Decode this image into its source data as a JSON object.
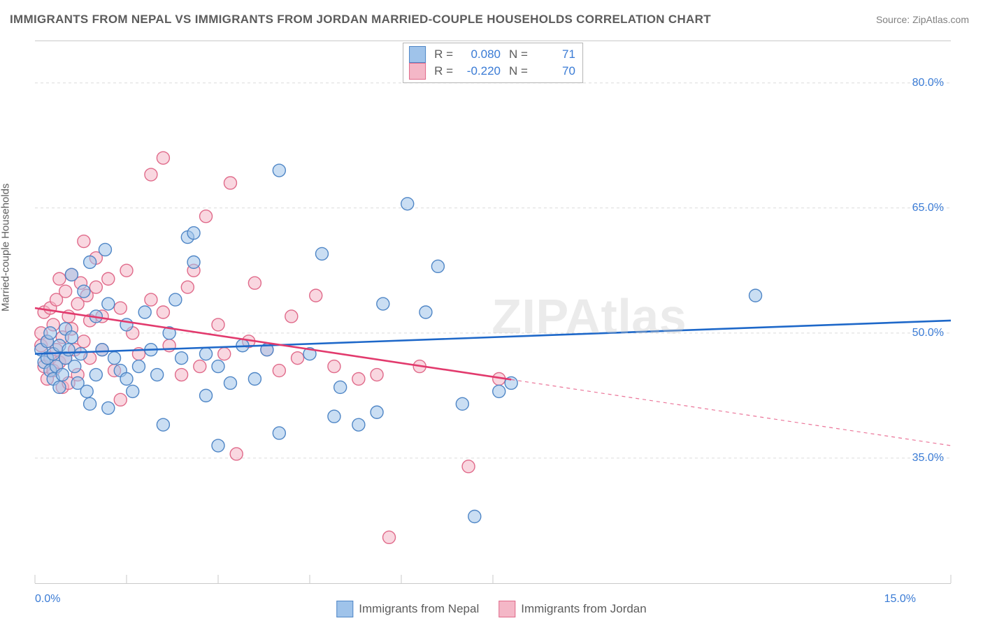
{
  "title": "IMMIGRANTS FROM NEPAL VS IMMIGRANTS FROM JORDAN MARRIED-COUPLE HOUSEHOLDS CORRELATION CHART",
  "source_label": "Source: ZipAtlas.com",
  "ylabel": "Married-couple Households",
  "watermark": "ZIPAtlas",
  "chart": {
    "type": "scatter",
    "xlim": [
      0.0,
      15.0
    ],
    "ylim": [
      20.0,
      85.0
    ],
    "xtick_labels": {
      "min": "0.0%",
      "max": "15.0%"
    },
    "ytick_values": [
      35.0,
      50.0,
      65.0,
      80.0
    ],
    "ytick_labels": [
      "35.0%",
      "50.0%",
      "65.0%",
      "80.0%"
    ],
    "x_minor_ticks": [
      0,
      1.5,
      3.0,
      4.5,
      6.0,
      7.5,
      15.0
    ],
    "background_color": "#ffffff",
    "grid_color": "#dcdcdc",
    "grid_dash": "4,4",
    "marker_radius": 9,
    "marker_stroke_width": 1.4,
    "trend_line_width": 2.6,
    "series": [
      {
        "key": "nepal",
        "label": "Immigrants from Nepal",
        "fill": "#9fc3ea",
        "stroke": "#4f86c6",
        "fill_opacity": 0.55,
        "trend": {
          "color": "#1e68c9",
          "x0": 0.0,
          "y0": 47.5,
          "x1": 15.0,
          "y1": 51.5,
          "solid_until_x": 15.0
        },
        "stats": {
          "R": "0.080",
          "N": "71"
        },
        "points": [
          [
            0.1,
            48.0
          ],
          [
            0.15,
            46.5
          ],
          [
            0.2,
            49.0
          ],
          [
            0.2,
            47.0
          ],
          [
            0.25,
            45.5
          ],
          [
            0.25,
            50.0
          ],
          [
            0.3,
            47.5
          ],
          [
            0.3,
            44.5
          ],
          [
            0.35,
            46.0
          ],
          [
            0.4,
            43.5
          ],
          [
            0.4,
            48.5
          ],
          [
            0.45,
            45.0
          ],
          [
            0.5,
            50.5
          ],
          [
            0.5,
            47.0
          ],
          [
            0.55,
            48.0
          ],
          [
            0.6,
            49.5
          ],
          [
            0.6,
            57.0
          ],
          [
            0.65,
            46.0
          ],
          [
            0.7,
            44.0
          ],
          [
            0.75,
            47.5
          ],
          [
            0.8,
            55.0
          ],
          [
            0.85,
            43.0
          ],
          [
            0.9,
            58.5
          ],
          [
            0.9,
            41.5
          ],
          [
            1.0,
            45.0
          ],
          [
            1.0,
            52.0
          ],
          [
            1.1,
            48.0
          ],
          [
            1.15,
            60.0
          ],
          [
            1.2,
            53.5
          ],
          [
            1.2,
            41.0
          ],
          [
            1.3,
            47.0
          ],
          [
            1.4,
            45.5
          ],
          [
            1.5,
            51.0
          ],
          [
            1.5,
            44.5
          ],
          [
            1.6,
            43.0
          ],
          [
            1.7,
            46.0
          ],
          [
            1.8,
            52.5
          ],
          [
            1.9,
            48.0
          ],
          [
            2.0,
            45.0
          ],
          [
            2.1,
            39.0
          ],
          [
            2.2,
            50.0
          ],
          [
            2.3,
            54.0
          ],
          [
            2.4,
            47.0
          ],
          [
            2.5,
            61.5
          ],
          [
            2.6,
            62.0
          ],
          [
            2.6,
            58.5
          ],
          [
            2.8,
            47.5
          ],
          [
            2.8,
            42.5
          ],
          [
            3.0,
            46.0
          ],
          [
            3.0,
            36.5
          ],
          [
            3.2,
            44.0
          ],
          [
            3.4,
            48.5
          ],
          [
            3.6,
            44.5
          ],
          [
            3.8,
            48.0
          ],
          [
            4.0,
            69.5
          ],
          [
            4.0,
            38.0
          ],
          [
            4.5,
            47.5
          ],
          [
            4.7,
            59.5
          ],
          [
            4.9,
            40.0
          ],
          [
            5.0,
            43.5
          ],
          [
            5.3,
            39.0
          ],
          [
            5.6,
            40.5
          ],
          [
            5.7,
            53.5
          ],
          [
            6.1,
            65.5
          ],
          [
            6.4,
            52.5
          ],
          [
            6.6,
            58.0
          ],
          [
            7.0,
            41.5
          ],
          [
            7.2,
            28.0
          ],
          [
            7.6,
            43.0
          ],
          [
            7.8,
            44.0
          ],
          [
            11.8,
            54.5
          ]
        ]
      },
      {
        "key": "jordan",
        "label": "Immigrants from Jordan",
        "fill": "#f4b7c7",
        "stroke": "#e06a8a",
        "fill_opacity": 0.55,
        "trend": {
          "color": "#e23a6d",
          "x0": 0.0,
          "y0": 53.0,
          "x1": 15.0,
          "y1": 36.5,
          "solid_until_x": 7.8
        },
        "stats": {
          "R": "-0.220",
          "N": "70"
        },
        "points": [
          [
            0.1,
            50.0
          ],
          [
            0.1,
            48.5
          ],
          [
            0.15,
            46.0
          ],
          [
            0.15,
            52.5
          ],
          [
            0.2,
            49.0
          ],
          [
            0.2,
            44.5
          ],
          [
            0.25,
            47.0
          ],
          [
            0.25,
            53.0
          ],
          [
            0.3,
            45.5
          ],
          [
            0.3,
            51.0
          ],
          [
            0.35,
            48.0
          ],
          [
            0.35,
            54.0
          ],
          [
            0.4,
            56.5
          ],
          [
            0.4,
            46.5
          ],
          [
            0.45,
            43.5
          ],
          [
            0.45,
            49.5
          ],
          [
            0.5,
            55.0
          ],
          [
            0.5,
            47.0
          ],
          [
            0.55,
            52.0
          ],
          [
            0.55,
            44.0
          ],
          [
            0.6,
            57.0
          ],
          [
            0.6,
            50.5
          ],
          [
            0.65,
            48.0
          ],
          [
            0.7,
            53.5
          ],
          [
            0.7,
            45.0
          ],
          [
            0.75,
            56.0
          ],
          [
            0.8,
            61.0
          ],
          [
            0.8,
            49.0
          ],
          [
            0.85,
            54.5
          ],
          [
            0.9,
            51.5
          ],
          [
            0.9,
            47.0
          ],
          [
            1.0,
            55.5
          ],
          [
            1.0,
            59.0
          ],
          [
            1.1,
            48.0
          ],
          [
            1.1,
            52.0
          ],
          [
            1.2,
            56.5
          ],
          [
            1.3,
            45.5
          ],
          [
            1.4,
            53.0
          ],
          [
            1.4,
            42.0
          ],
          [
            1.5,
            57.5
          ],
          [
            1.6,
            50.0
          ],
          [
            1.7,
            47.5
          ],
          [
            1.9,
            54.0
          ],
          [
            1.9,
            69.0
          ],
          [
            2.1,
            52.5
          ],
          [
            2.1,
            71.0
          ],
          [
            2.2,
            48.5
          ],
          [
            2.4,
            45.0
          ],
          [
            2.5,
            55.5
          ],
          [
            2.6,
            57.5
          ],
          [
            2.7,
            46.0
          ],
          [
            2.8,
            64.0
          ],
          [
            3.0,
            51.0
          ],
          [
            3.1,
            47.5
          ],
          [
            3.2,
            68.0
          ],
          [
            3.3,
            35.5
          ],
          [
            3.5,
            49.0
          ],
          [
            3.6,
            56.0
          ],
          [
            3.8,
            48.0
          ],
          [
            4.0,
            45.5
          ],
          [
            4.2,
            52.0
          ],
          [
            4.3,
            47.0
          ],
          [
            4.6,
            54.5
          ],
          [
            4.9,
            46.0
          ],
          [
            5.3,
            44.5
          ],
          [
            5.6,
            45.0
          ],
          [
            5.8,
            25.5
          ],
          [
            6.3,
            46.0
          ],
          [
            7.1,
            34.0
          ],
          [
            7.6,
            44.5
          ]
        ]
      }
    ]
  }
}
